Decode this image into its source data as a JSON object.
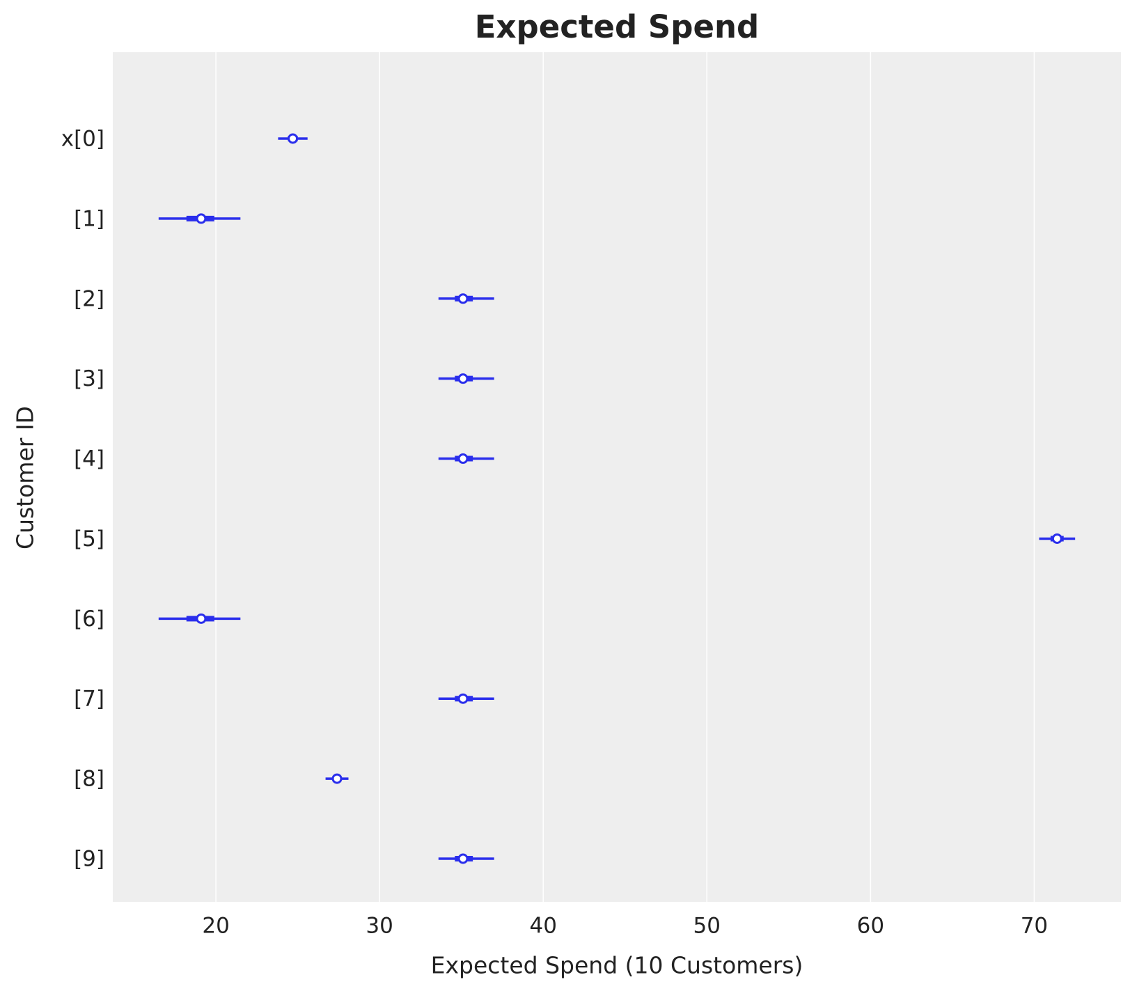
{
  "chart_data": {
    "type": "forest",
    "title": "Expected Spend",
    "x_label": "Expected Spend (10 Customers)",
    "y_label": "Customer ID",
    "categories": [
      "x[0]",
      "[1]",
      "[2]",
      "[3]",
      "[4]",
      "[5]",
      "[6]",
      "[7]",
      "[8]",
      "[9]"
    ],
    "values": [
      24.7,
      19.1,
      35.1,
      35.1,
      35.1,
      71.4,
      19.1,
      35.1,
      27.4,
      35.1
    ],
    "hdi": [
      [
        23.8,
        25.6
      ],
      [
        16.5,
        21.5
      ],
      [
        33.6,
        37.0
      ],
      [
        33.6,
        37.0
      ],
      [
        33.6,
        37.0
      ],
      [
        70.3,
        72.5
      ],
      [
        16.5,
        21.5
      ],
      [
        33.6,
        37.0
      ],
      [
        26.7,
        28.1
      ],
      [
        33.6,
        37.0
      ]
    ],
    "iqr": [
      [
        24.4,
        25.0
      ],
      [
        18.2,
        19.9
      ],
      [
        34.6,
        35.7
      ],
      [
        34.6,
        35.7
      ],
      [
        34.6,
        35.7
      ],
      [
        71.0,
        71.8
      ],
      [
        18.2,
        19.9
      ],
      [
        34.6,
        35.7
      ],
      [
        27.2,
        27.6
      ],
      [
        34.6,
        35.7
      ]
    ],
    "color": "#2a2eec",
    "xlim": [
      13.7,
      75.3
    ],
    "xticks": [
      20,
      30,
      40,
      50,
      60,
      70
    ],
    "grid": true
  }
}
